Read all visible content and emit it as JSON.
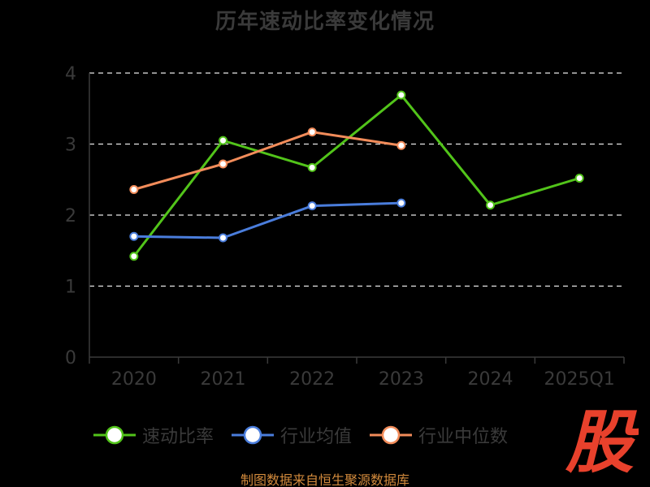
{
  "chart_data": {
    "type": "line",
    "title": "历年速动比率变化情况",
    "categories": [
      "2020",
      "2021",
      "2022",
      "2023",
      "2024",
      "2025Q1"
    ],
    "ylim": [
      0,
      4
    ],
    "yticks": [
      0,
      1,
      2,
      3,
      4
    ],
    "grid": true,
    "legend_position": "bottom",
    "series": [
      {
        "name": "速动比率",
        "color": "#52c41a",
        "values": [
          1.42,
          3.05,
          2.67,
          3.69,
          2.14,
          2.52
        ]
      },
      {
        "name": "行业均值",
        "color": "#4a7ddc",
        "values": [
          1.7,
          1.68,
          2.13,
          2.17,
          null,
          null
        ]
      },
      {
        "name": "行业中位数",
        "color": "#f28c5a",
        "values": [
          2.36,
          2.72,
          3.17,
          2.98,
          null,
          null
        ]
      }
    ]
  },
  "watermark_text": "股",
  "source": "制图数据来自恒生聚源数据库"
}
